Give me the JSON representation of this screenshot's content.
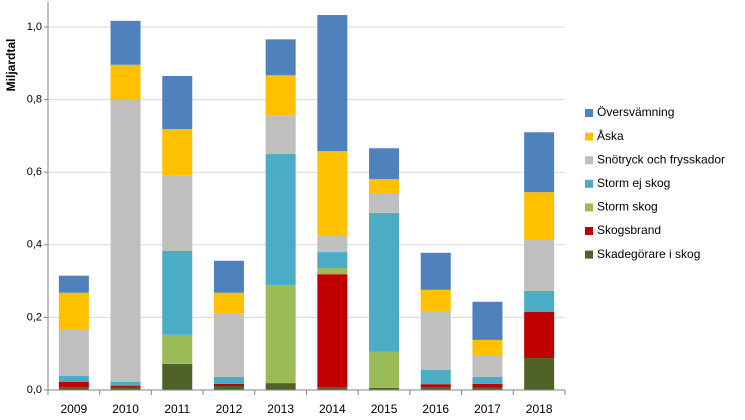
{
  "chart_data": {
    "type": "stacked-bar",
    "y_label": "Miljardtal",
    "categories": [
      "2009",
      "2010",
      "2011",
      "2012",
      "2013",
      "2014",
      "2015",
      "2016",
      "2017",
      "2018"
    ],
    "ylim": [
      0,
      1.07
    ],
    "yticks": [
      {
        "value": 0,
        "label": "0,0"
      },
      {
        "value": 0.2,
        "label": "0,2"
      },
      {
        "value": 0.4,
        "label": "0,4"
      },
      {
        "value": 0.6,
        "label": "0,6"
      },
      {
        "value": 0.8,
        "label": "0,8"
      },
      {
        "value": 1.0,
        "label": "1,0"
      }
    ],
    "grid": true,
    "series": [
      {
        "name": "Skadegörare i skog",
        "color": "#4f6228",
        "values": [
          0.008,
          0.006,
          0.072,
          0.011,
          0.019,
          0.008,
          0.006,
          0.008,
          0.006,
          0.088
        ]
      },
      {
        "name": "Skogsbrand",
        "color": "#c00000",
        "values": [
          0.014,
          0.006,
          0,
          0.006,
          0,
          0.311,
          0,
          0.008,
          0.011,
          0.127
        ]
      },
      {
        "name": "Storm skog",
        "color": "#9bbb59",
        "values": [
          0,
          0,
          0.08,
          0,
          0.27,
          0.017,
          0.099,
          0,
          0,
          0
        ]
      },
      {
        "name": "Storm ej skog",
        "color": "#4bacc6",
        "values": [
          0.017,
          0.011,
          0.231,
          0.019,
          0.361,
          0.044,
          0.383,
          0.039,
          0.019,
          0.058
        ]
      },
      {
        "name": "Snötryck och frysskador",
        "color": "#bfbfbf",
        "values": [
          0.127,
          0.777,
          0.207,
          0.174,
          0.107,
          0.044,
          0.052,
          0.163,
          0.058,
          0.14
        ]
      },
      {
        "name": "Åska",
        "color": "#ffc000",
        "values": [
          0.102,
          0.096,
          0.129,
          0.058,
          0.11,
          0.234,
          0.041,
          0.058,
          0.044,
          0.132
        ]
      },
      {
        "name": "Översvämning",
        "color": "#4f81bd",
        "values": [
          0.047,
          0.121,
          0.146,
          0.088,
          0.099,
          0.375,
          0.085,
          0.102,
          0.105,
          0.165
        ]
      }
    ]
  }
}
